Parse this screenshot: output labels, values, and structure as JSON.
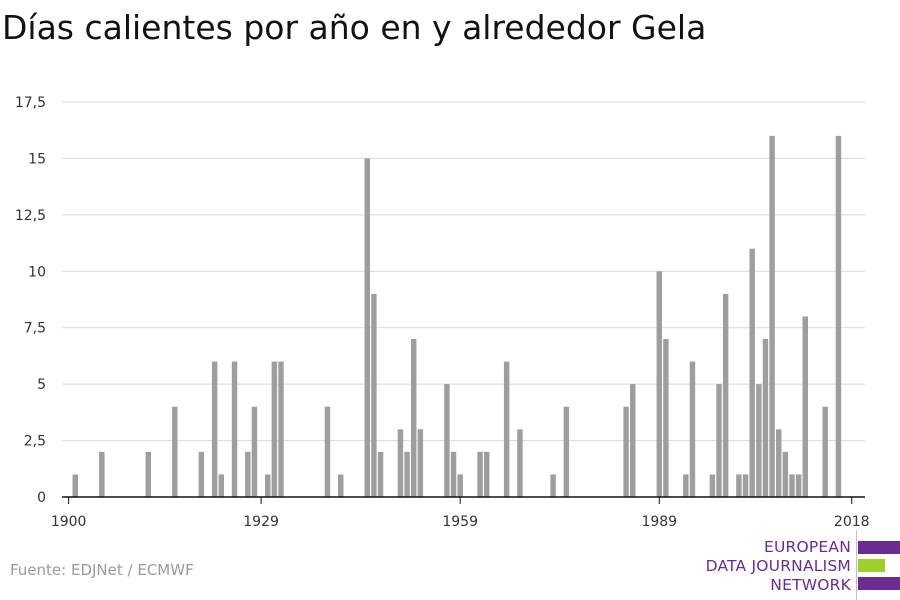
{
  "title": "Días calientes por año en y alrededor Gela",
  "source": "Fuente: EDJNet / ECMWF",
  "logo": {
    "lines": [
      "EUROPEAN",
      "DATA JOURNALISM",
      "NETWORK"
    ],
    "colors": {
      "purple": "#6b2c91",
      "green": "#9bd12a"
    }
  },
  "chart_data": {
    "type": "bar",
    "title": "",
    "xlabel": "",
    "ylabel": "",
    "ylim": [
      0,
      17.5
    ],
    "yticks": [
      0,
      2.5,
      5,
      7.5,
      10,
      12.5,
      15,
      17.5
    ],
    "ytick_labels": [
      "0",
      "2,5",
      "5",
      "7,5",
      "10",
      "12,5",
      "15",
      "17,5"
    ],
    "xlim": [
      1899,
      2020
    ],
    "xticks": [
      1900,
      1929,
      1959,
      1989,
      2018
    ],
    "xtick_labels": [
      "1900",
      "1929",
      "1959",
      "1989",
      "2018"
    ],
    "grid": true,
    "bar_color": "#9e9e9e",
    "x": [
      1901,
      1905,
      1912,
      1916,
      1920,
      1922,
      1923,
      1925,
      1927,
      1928,
      1930,
      1931,
      1932,
      1939,
      1941,
      1945,
      1946,
      1947,
      1950,
      1951,
      1952,
      1953,
      1957,
      1958,
      1959,
      1962,
      1963,
      1966,
      1968,
      1973,
      1975,
      1984,
      1985,
      1989,
      1990,
      1993,
      1994,
      1997,
      1998,
      1999,
      2001,
      2002,
      2003,
      2004,
      2005,
      2006,
      2007,
      2008,
      2009,
      2010,
      2011,
      2014,
      2016
    ],
    "values": [
      1,
      2,
      2,
      4,
      2,
      6,
      1,
      6,
      2,
      4,
      1,
      6,
      6,
      4,
      1,
      15,
      9,
      2,
      3,
      2,
      7,
      3,
      5,
      2,
      1,
      2,
      2,
      6,
      3,
      1,
      4,
      4,
      5,
      10,
      7,
      1,
      6,
      1,
      5,
      9,
      1,
      1,
      11,
      5,
      7,
      16,
      3,
      2,
      1,
      1,
      8,
      4,
      16
    ]
  }
}
